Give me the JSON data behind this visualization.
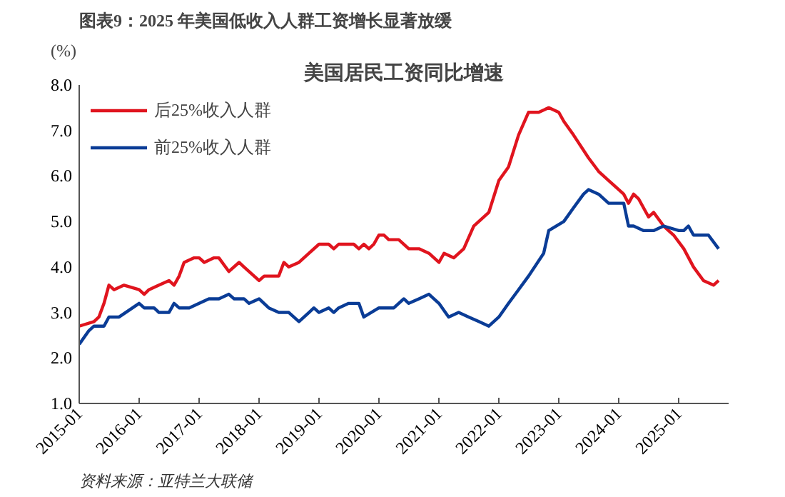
{
  "chart_data": {
    "type": "line",
    "title": "美国居民工资同比增速",
    "subtitle": "图表9：2025 年美国低收入人群工资增长显著放缓",
    "ylabel": "(%)",
    "annotations": [
      "资料来源：亚特兰大联储"
    ],
    "xlim": [
      "2015-01",
      "2025-11"
    ],
    "xticks": [
      "2015-01",
      "2016-01",
      "2017-01",
      "2018-01",
      "2019-01",
      "2020-01",
      "2021-01",
      "2022-01",
      "2023-01",
      "2024-01",
      "2025-01"
    ],
    "ylim": [
      1,
      8
    ],
    "yticks": [
      {
        "value": 1,
        "label": "1.0"
      },
      {
        "value": 2,
        "label": "2.0"
      },
      {
        "value": 3,
        "label": "3.0"
      },
      {
        "value": 4,
        "label": "4.0"
      },
      {
        "value": 5,
        "label": "5.0"
      },
      {
        "value": 6,
        "label": "6.0"
      },
      {
        "value": 7,
        "label": "7.0"
      },
      {
        "value": 8,
        "label": "8.0"
      }
    ],
    "legend": "top left",
    "grid": false,
    "series": [
      {
        "name": "后25%收入人群",
        "color": "#e0141e",
        "x": [
          "2015-01",
          "2015-04",
          "2015-05",
          "2015-06",
          "2015-07",
          "2015-08",
          "2015-10",
          "2016-01",
          "2016-02",
          "2016-03",
          "2016-05",
          "2016-07",
          "2016-08",
          "2016-09",
          "2016-10",
          "2016-12",
          "2017-01",
          "2017-02",
          "2017-04",
          "2017-05",
          "2017-07",
          "2017-09",
          "2017-10",
          "2018-01",
          "2018-02",
          "2018-05",
          "2018-06",
          "2018-07",
          "2018-09",
          "2018-11",
          "2019-01",
          "2019-03",
          "2019-04",
          "2019-05",
          "2019-08",
          "2019-09",
          "2019-10",
          "2019-11",
          "2019-12",
          "2020-01",
          "2020-02",
          "2020-03",
          "2020-05",
          "2020-07",
          "2020-09",
          "2020-11",
          "2021-01",
          "2021-02",
          "2021-04",
          "2021-06",
          "2021-08",
          "2021-11",
          "2022-01",
          "2022-03",
          "2022-05",
          "2022-07",
          "2022-09",
          "2022-11",
          "2023-01",
          "2023-02",
          "2023-04",
          "2023-07",
          "2023-09",
          "2023-11",
          "2024-02",
          "2024-03",
          "2024-04",
          "2024-05",
          "2024-07",
          "2024-08",
          "2024-10",
          "2024-12",
          "2025-02",
          "2025-04",
          "2025-06",
          "2025-08",
          "2025-09"
        ],
        "values": [
          2.7,
          2.8,
          2.9,
          3.2,
          3.6,
          3.5,
          3.6,
          3.5,
          3.4,
          3.5,
          3.6,
          3.7,
          3.6,
          3.8,
          4.1,
          4.2,
          4.2,
          4.1,
          4.2,
          4.2,
          3.9,
          4.1,
          4.0,
          3.7,
          3.8,
          3.8,
          4.1,
          4.0,
          4.1,
          4.3,
          4.5,
          4.5,
          4.4,
          4.5,
          4.5,
          4.4,
          4.5,
          4.4,
          4.5,
          4.7,
          4.7,
          4.6,
          4.6,
          4.4,
          4.4,
          4.3,
          4.1,
          4.3,
          4.2,
          4.4,
          4.9,
          5.2,
          5.9,
          6.2,
          6.9,
          7.4,
          7.4,
          7.5,
          7.4,
          7.2,
          6.9,
          6.4,
          6.1,
          5.9,
          5.6,
          5.4,
          5.6,
          5.5,
          5.1,
          5.2,
          4.9,
          4.7,
          4.4,
          4.0,
          3.7,
          3.6,
          3.7
        ]
      },
      {
        "name": "前25%收入人群",
        "color": "#0a3c96",
        "x": [
          "2015-01",
          "2015-03",
          "2015-04",
          "2015-06",
          "2015-07",
          "2015-09",
          "2016-01",
          "2016-02",
          "2016-04",
          "2016-05",
          "2016-07",
          "2016-08",
          "2016-09",
          "2016-11",
          "2017-01",
          "2017-03",
          "2017-05",
          "2017-07",
          "2017-08",
          "2017-10",
          "2017-11",
          "2018-01",
          "2018-03",
          "2018-05",
          "2018-07",
          "2018-09",
          "2018-11",
          "2018-12",
          "2019-01",
          "2019-03",
          "2019-04",
          "2019-05",
          "2019-07",
          "2019-09",
          "2019-10",
          "2020-01",
          "2020-04",
          "2020-06",
          "2020-07",
          "2020-09",
          "2020-11",
          "2021-01",
          "2021-03",
          "2021-05",
          "2021-07",
          "2021-09",
          "2021-11",
          "2022-01",
          "2022-03",
          "2022-05",
          "2022-07",
          "2022-10",
          "2022-11",
          "2023-02",
          "2023-04",
          "2023-06",
          "2023-07",
          "2023-09",
          "2023-11",
          "2024-02",
          "2024-03",
          "2024-04",
          "2024-06",
          "2024-08",
          "2024-10",
          "2025-01",
          "2025-02",
          "2025-03",
          "2025-04",
          "2025-07",
          "2025-09"
        ],
        "values": [
          2.3,
          2.6,
          2.7,
          2.7,
          2.9,
          2.9,
          3.2,
          3.1,
          3.1,
          3.0,
          3.0,
          3.2,
          3.1,
          3.1,
          3.2,
          3.3,
          3.3,
          3.4,
          3.3,
          3.3,
          3.2,
          3.3,
          3.1,
          3.0,
          3.0,
          2.8,
          3.0,
          3.1,
          3.0,
          3.1,
          3.0,
          3.1,
          3.2,
          3.2,
          2.9,
          3.1,
          3.1,
          3.3,
          3.2,
          3.3,
          3.4,
          3.2,
          2.9,
          3.0,
          2.9,
          2.8,
          2.7,
          2.9,
          3.2,
          3.5,
          3.8,
          4.3,
          4.8,
          5.0,
          5.3,
          5.6,
          5.7,
          5.6,
          5.4,
          5.4,
          4.9,
          4.9,
          4.8,
          4.8,
          4.9,
          4.8,
          4.8,
          4.9,
          4.7,
          4.7,
          4.4
        ]
      }
    ]
  }
}
